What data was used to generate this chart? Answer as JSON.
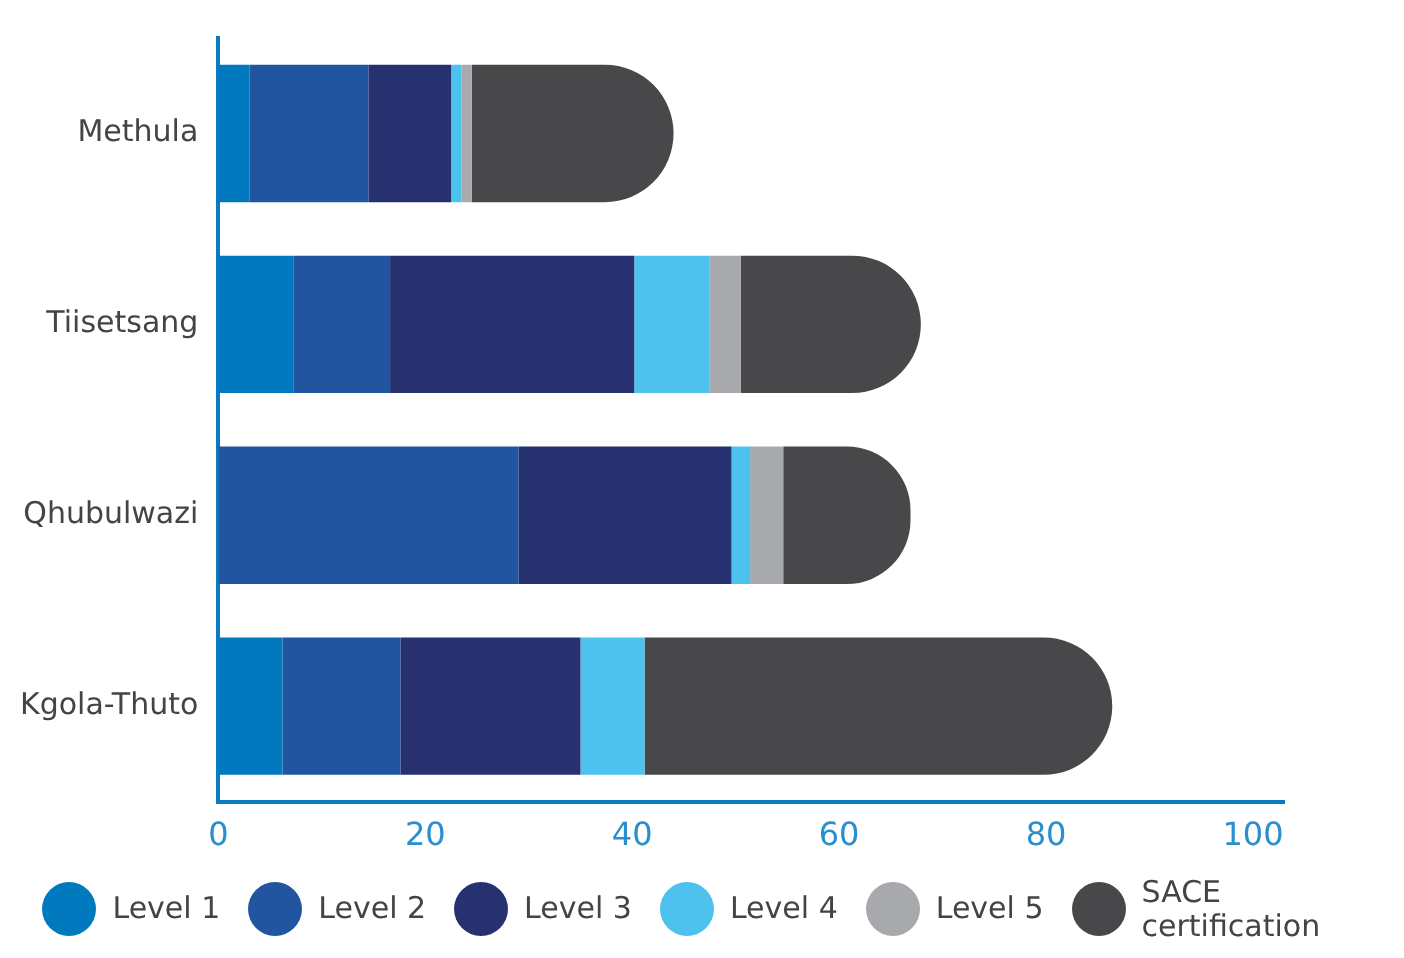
{
  "chart_data": {
    "type": "bar",
    "orientation": "horizontal",
    "stacked": true,
    "categories": [
      "Methula",
      "Tiisetsang",
      "Qhubulwazi",
      "Kgola-Thuto"
    ],
    "series": [
      {
        "name": "Level 1",
        "color": "#0079bf",
        "values": [
          3,
          7.3,
          0,
          6.2
        ]
      },
      {
        "name": "Level 2",
        "color": "#2255a0",
        "values": [
          11.5,
          9.3,
          29,
          11.4
        ]
      },
      {
        "name": "Level 3",
        "color": "#27316f",
        "values": [
          8,
          23.6,
          20.6,
          17.4
        ]
      },
      {
        "name": "Level 4",
        "color": "#4dc2ef",
        "values": [
          1,
          7.3,
          1.8,
          6.2
        ]
      },
      {
        "name": "Level 5",
        "color": "#a8a9ad",
        "values": [
          1,
          3,
          3.2,
          0
        ]
      },
      {
        "name": "SACE certification",
        "color": "#48484a",
        "values": [
          19.5,
          17.4,
          12.3,
          45.2
        ]
      }
    ],
    "xlim": [
      0,
      103
    ],
    "xticks": [
      0,
      20,
      40,
      60,
      80,
      100
    ],
    "grid": false,
    "legend": "bottom"
  }
}
